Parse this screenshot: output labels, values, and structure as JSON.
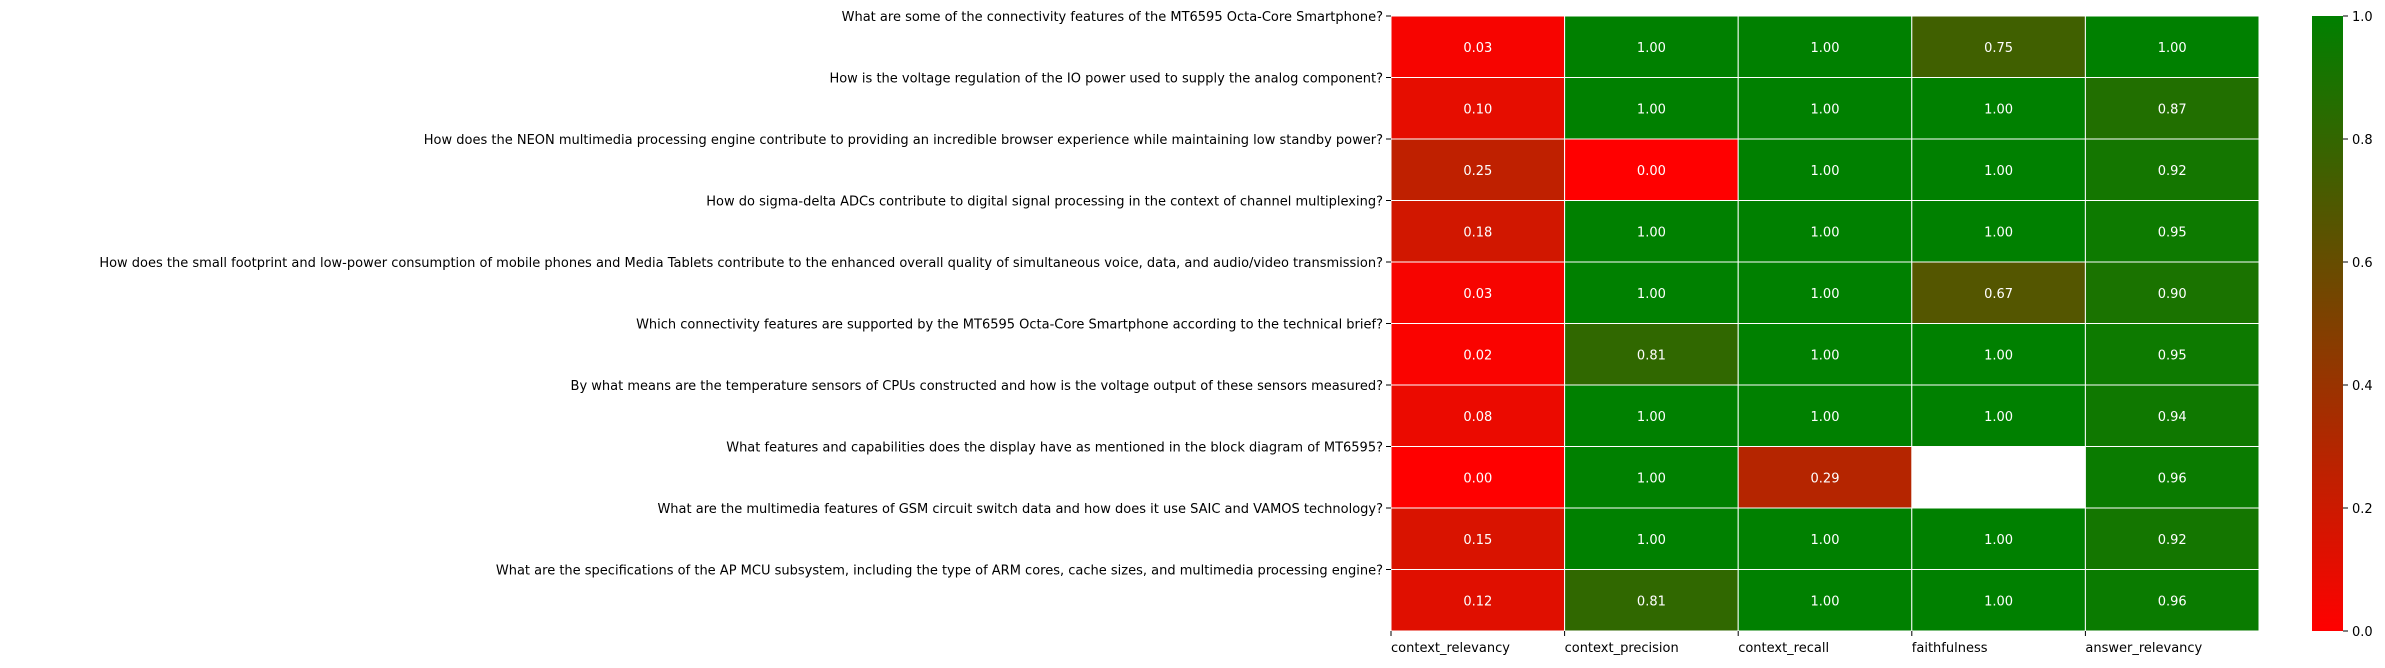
{
  "chart_data": {
    "type": "heatmap",
    "title": "",
    "xlabel": "",
    "ylabel": "",
    "columns": [
      "context_relevancy",
      "context_precision",
      "context_recall",
      "faithfulness",
      "answer_relevancy"
    ],
    "rows": [
      "What are some of the connectivity features of the MT6595 Octa-Core Smartphone?",
      "How is the voltage regulation of the IO power used to supply the analog component?",
      "How does the NEON multimedia processing engine contribute to providing an incredible browser experience while maintaining low standby power?",
      "How do sigma-delta ADCs contribute to digital signal processing in the context of channel multiplexing?",
      "How does the small footprint and low-power consumption of mobile phones and Media Tablets contribute to the enhanced overall quality of simultaneous voice, data, and audio/video transmission?",
      "Which connectivity features are supported by the MT6595 Octa-Core Smartphone according to the technical brief?",
      "By what means are the temperature sensors of CPUs constructed and how is the voltage output of these sensors measured?",
      "What features and capabilities does the display have as mentioned in the block diagram of MT6595?",
      "What are the multimedia features of GSM circuit switch data and how does it use SAIC and VAMOS technology?",
      "What are the specifications of the AP MCU subsystem, including the type of ARM cores, cache sizes, and multimedia processing engine?"
    ],
    "values": [
      [
        0.03,
        1.0,
        1.0,
        0.75,
        1.0
      ],
      [
        0.1,
        1.0,
        1.0,
        1.0,
        0.87
      ],
      [
        0.25,
        0.0,
        1.0,
        1.0,
        0.92
      ],
      [
        0.18,
        1.0,
        1.0,
        1.0,
        0.95
      ],
      [
        0.03,
        1.0,
        1.0,
        0.67,
        0.9
      ],
      [
        0.02,
        0.81,
        1.0,
        1.0,
        0.95
      ],
      [
        0.08,
        1.0,
        1.0,
        1.0,
        0.94
      ],
      [
        0.0,
        1.0,
        0.29,
        null,
        0.96
      ],
      [
        0.15,
        1.0,
        1.0,
        1.0,
        0.92
      ],
      [
        0.12,
        0.81,
        1.0,
        1.0,
        0.96
      ]
    ],
    "value_range": [
      0,
      1
    ],
    "colormap": [
      "#ff0000",
      "#008000"
    ],
    "colorbar_ticks": [
      "0.0",
      "0.2",
      "0.4",
      "0.6",
      "0.8",
      "1.0"
    ],
    "legend": "colorbar-right",
    "grid": false
  }
}
